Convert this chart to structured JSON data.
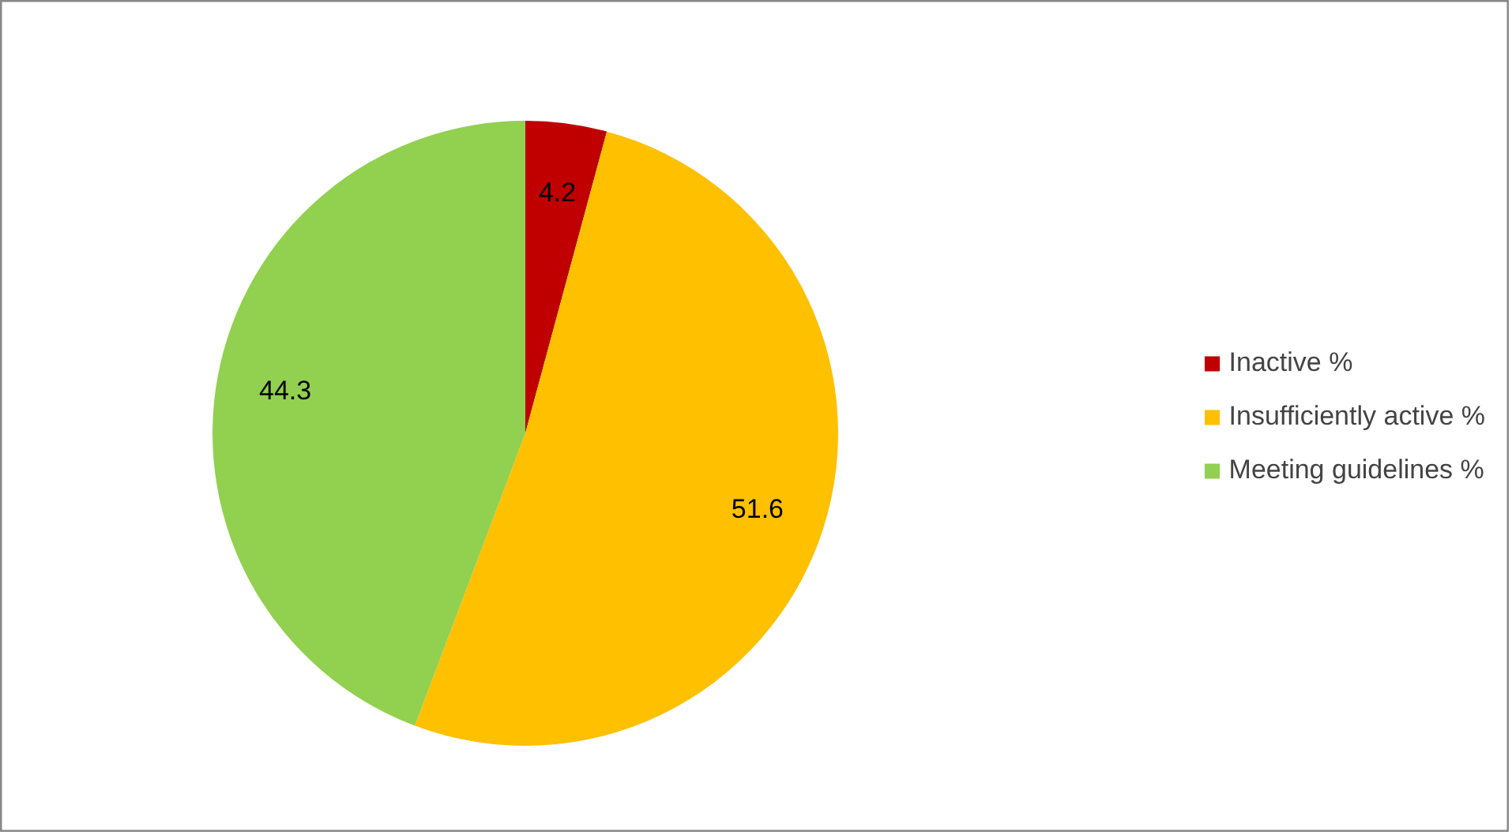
{
  "chart_data": {
    "type": "pie",
    "categories": [
      "Inactive %",
      "Insufficiently active %",
      "Meeting guidelines %"
    ],
    "values": [
      4.2,
      51.6,
      44.3
    ],
    "colors": [
      "#c00000",
      "#ffc000",
      "#92d050"
    ],
    "data_labels": true,
    "legend": "right"
  }
}
